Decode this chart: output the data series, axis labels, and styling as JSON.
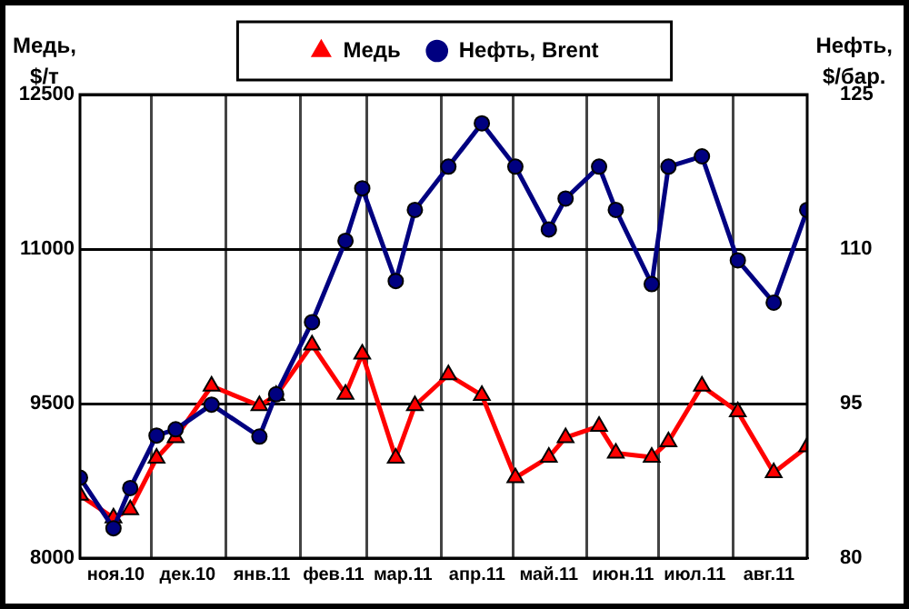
{
  "chart_data": {
    "type": "line",
    "ylabel": "Медь,\n$/т",
    "y2label": "Нефть,\n$/бар.",
    "x": [
      "2010-11-01",
      "2010-11-15",
      "2010-11-22",
      "2010-12-03",
      "2010-12-11",
      "2010-12-26",
      "2011-01-15",
      "2011-01-22",
      "2011-02-06",
      "2011-02-20",
      "2011-02-27",
      "2011-03-13",
      "2011-03-21",
      "2011-04-04",
      "2011-04-18",
      "2011-05-02",
      "2011-05-16",
      "2011-05-23",
      "2011-06-06",
      "2011-06-13",
      "2011-06-28",
      "2011-07-05",
      "2011-07-19",
      "2011-08-03",
      "2011-08-18",
      "2011-09-01"
    ],
    "series": [
      {
        "name": "Медь",
        "color": "#ff0000",
        "marker": "triangle",
        "values": [
          8610,
          8390,
          8470,
          8970,
          9170,
          9670,
          9480,
          9580,
          10070,
          9590,
          9980,
          8970,
          9480,
          9780,
          9580,
          8780,
          8980,
          9170,
          9280,
          9020,
          8980,
          9130,
          9670,
          9420,
          8830,
          9080
        ]
      },
      {
        "name": "Нефть, Brent",
        "color": "#000080",
        "marker": "circle",
        "axis": "y2",
        "values": [
          87.8,
          82.9,
          86.8,
          91.9,
          92.5,
          94.9,
          91.8,
          95.9,
          102.9,
          110.8,
          115.9,
          106.9,
          113.8,
          118.0,
          122.2,
          118.0,
          111.9,
          114.9,
          118.0,
          113.8,
          106.6,
          118.0,
          119.0,
          108.9,
          104.8,
          113.8
        ]
      }
    ],
    "xlim": [
      "2010-11-01",
      "2011-09-01"
    ],
    "xticks": [
      {
        "value": "2010-11-16",
        "label": "ноя.10"
      },
      {
        "value": "2010-12-01",
        "label": null
      },
      {
        "value": "2010-12-16",
        "label": "дек.10"
      },
      {
        "value": "2011-01-01",
        "label": null
      },
      {
        "value": "2011-01-16",
        "label": "янв.11"
      },
      {
        "value": "2011-02-01",
        "label": null
      },
      {
        "value": "2011-02-15",
        "label": "фев.11"
      },
      {
        "value": "2011-03-01",
        "label": null
      },
      {
        "value": "2011-03-16",
        "label": "мар.11"
      },
      {
        "value": "2011-04-01",
        "label": null
      },
      {
        "value": "2011-04-16",
        "label": "апр.11"
      },
      {
        "value": "2011-05-01",
        "label": null
      },
      {
        "value": "2011-05-16",
        "label": "май.11"
      },
      {
        "value": "2011-06-01",
        "label": null
      },
      {
        "value": "2011-06-16",
        "label": "июн.11"
      },
      {
        "value": "2011-07-01",
        "label": null
      },
      {
        "value": "2011-07-16",
        "label": "июл.11"
      },
      {
        "value": "2011-08-01",
        "label": null
      },
      {
        "value": "2011-08-16",
        "label": "авг.11"
      }
    ],
    "ylim": [
      8000,
      12500
    ],
    "yticks": [
      8000,
      9500,
      11000,
      12500
    ],
    "y2lim": [
      80,
      125
    ],
    "y2ticks": [
      80,
      95,
      110,
      125
    ],
    "grid": true,
    "legend": "top",
    "line_style": "solid"
  }
}
